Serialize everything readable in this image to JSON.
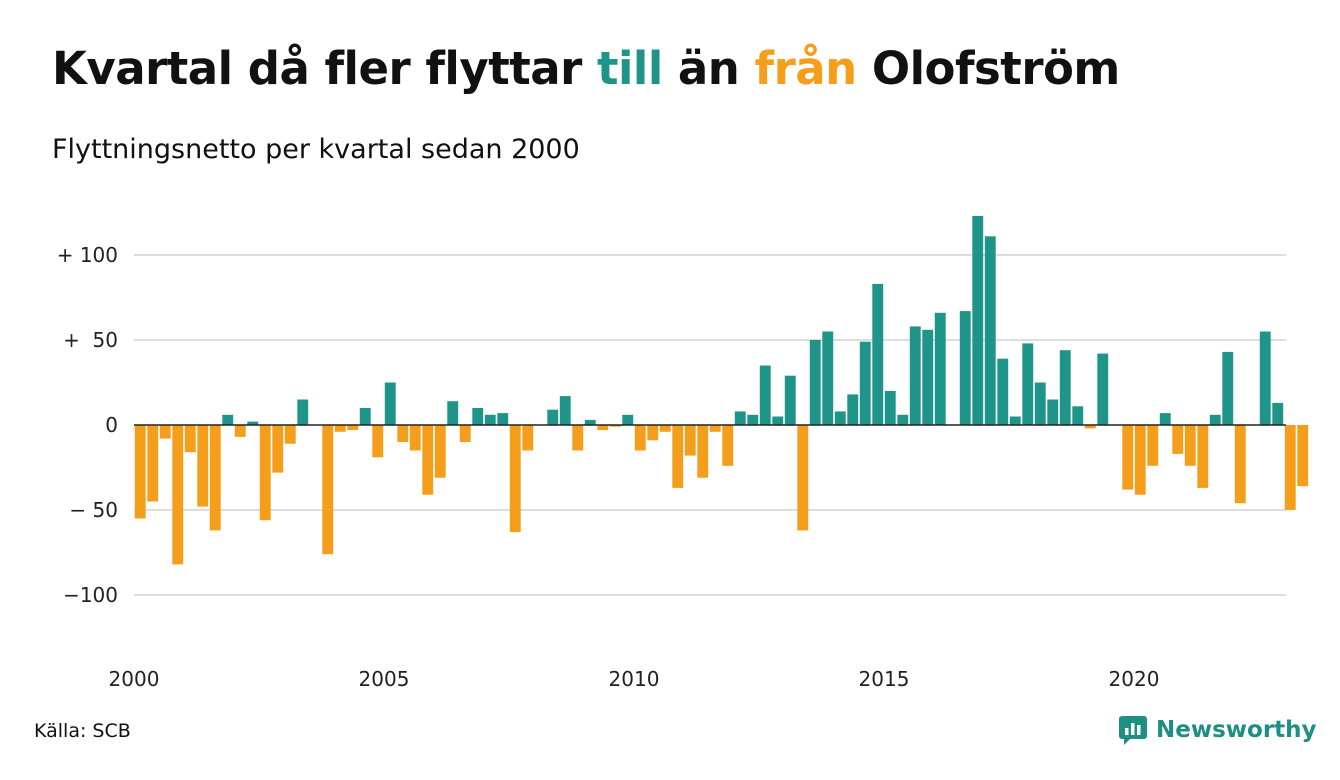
{
  "title": {
    "part1": "Kvartal då fler flyttar ",
    "highlight1": "till",
    "part2": " än ",
    "highlight2": "från",
    "part3": " Olofström"
  },
  "subtitle": "Flyttningsnetto per kvartal sedan 2000",
  "source": "Källa: SCB",
  "brand": {
    "name": "Newsworthy",
    "icon": "newsworthy-logo-icon"
  },
  "colors": {
    "positive": "#1f9488",
    "negative": "#f59e1c",
    "grid": "#dddddd",
    "axis": "#222222"
  },
  "chart_data": {
    "type": "bar",
    "title": "Kvartal då fler flyttar till än från Olofström",
    "subtitle": "Flyttningsnetto per kvartal sedan 2000",
    "xlabel": "",
    "ylabel": "",
    "ylim": [
      -140,
      140
    ],
    "yticks": [
      {
        "value": 100,
        "label": "+ 100"
      },
      {
        "value": 50,
        "label": "+  50"
      },
      {
        "value": 0,
        "label": "0"
      },
      {
        "value": -50,
        "label": "− 50"
      },
      {
        "value": -100,
        "label": "−100"
      }
    ],
    "xticks": [
      "2000",
      "2005",
      "2010",
      "2015",
      "2020"
    ],
    "grid": true,
    "categories": [
      "2000 K1",
      "2000 K2",
      "2000 K3",
      "2000 K4",
      "2001 K1",
      "2001 K2",
      "2001 K3",
      "2001 K4",
      "2002 K1",
      "2002 K2",
      "2002 K3",
      "2002 K4",
      "2003 K1",
      "2003 K2",
      "2003 K3",
      "2003 K4",
      "2004 K1",
      "2004 K2",
      "2004 K3",
      "2004 K4",
      "2005 K1",
      "2005 K2",
      "2005 K3",
      "2005 K4",
      "2006 K1",
      "2006 K2",
      "2006 K3",
      "2006 K4",
      "2007 K1",
      "2007 K2",
      "2007 K3",
      "2007 K4",
      "2008 K1",
      "2008 K2",
      "2008 K3",
      "2008 K4",
      "2009 K1",
      "2009 K2",
      "2009 K3",
      "2009 K4",
      "2010 K1",
      "2010 K2",
      "2010 K3",
      "2010 K4",
      "2011 K1",
      "2011 K2",
      "2011 K3",
      "2011 K4",
      "2012 K1",
      "2012 K2",
      "2012 K3",
      "2012 K4",
      "2013 K1",
      "2013 K2",
      "2013 K3",
      "2013 K4",
      "2014 K1",
      "2014 K2",
      "2014 K3",
      "2014 K4",
      "2015 K1",
      "2015 K2",
      "2015 K3",
      "2015 K4",
      "2016 K1",
      "2016 K2",
      "2016 K3",
      "2016 K4",
      "2017 K1",
      "2017 K2",
      "2017 K3",
      "2017 K4",
      "2018 K1",
      "2018 K2",
      "2018 K3",
      "2018 K4",
      "2019 K1",
      "2019 K2",
      "2019 K3",
      "2019 K4",
      "2020 K1",
      "2020 K2",
      "2020 K3",
      "2020 K4",
      "2021 K1",
      "2021 K2",
      "2021 K3",
      "2021 K4",
      "2022 K1",
      "2022 K2",
      "2022 K3",
      "2022 K4",
      "2023 K1",
      "2023 K2"
    ],
    "values": [
      -55,
      -45,
      -8,
      -82,
      -16,
      -48,
      -62,
      6,
      -7,
      2,
      -56,
      -28,
      -11,
      15,
      0,
      -76,
      -4,
      -3,
      10,
      -19,
      25,
      -10,
      -15,
      -41,
      -31,
      14,
      -10,
      10,
      6,
      7,
      -63,
      -15,
      0,
      9,
      17,
      -15,
      3,
      -3,
      -1,
      6,
      -15,
      -9,
      -4,
      -37,
      -18,
      -31,
      -4,
      -24,
      8,
      6,
      35,
      5,
      29,
      -62,
      50,
      55,
      8,
      18,
      49,
      83,
      20,
      6,
      58,
      56,
      66,
      0,
      67,
      123,
      111,
      39,
      5,
      48,
      25,
      15,
      44,
      11,
      -2,
      42,
      0,
      -38,
      -41,
      -24,
      7,
      -17,
      -24,
      -37,
      6,
      43,
      -46,
      0,
      55,
      13,
      -50,
      -36
    ]
  }
}
